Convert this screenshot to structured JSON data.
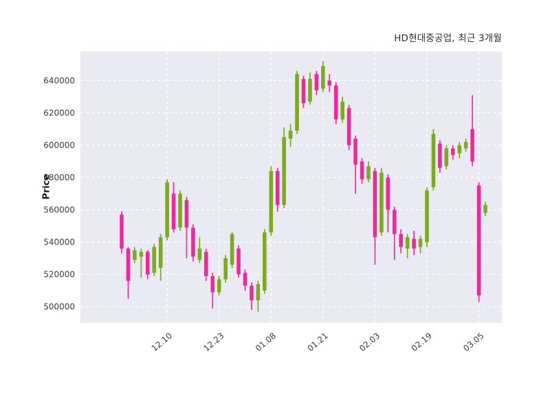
{
  "title": "HD현대중공업, 최근 3개월",
  "ylabel": "Price",
  "colors": {
    "figure_bg": "#ffffff",
    "plot_bg": "#eaeaf2",
    "grid": "#ffffff",
    "tick_text": "#3b3b3b",
    "title_text": "#2e2e2e"
  },
  "chart_data": {
    "type": "candlestick",
    "title": "HD현대중공업, 최근 3개월",
    "ylabel": "Price",
    "grid": true,
    "legend": false,
    "up_color": "#7dab1e",
    "down_color": "#ee2a9b",
    "ylim": [
      490000,
      658000
    ],
    "y_ticks": [
      500000,
      520000,
      540000,
      560000,
      580000,
      600000,
      620000,
      640000
    ],
    "y_tick_labels": [
      "500000",
      "520000",
      "540000",
      "560000",
      "580000",
      "600000",
      "620000",
      "640000"
    ],
    "x_tick_labels": [
      "12.10",
      "12.23",
      "01.08",
      "01.21",
      "02.03",
      "02.19",
      "03.05"
    ],
    "x_tick_indices": [
      7,
      15,
      23,
      31,
      39,
      47,
      55
    ],
    "ohlc_order": [
      "open",
      "high",
      "low",
      "close"
    ],
    "candles": [
      [
        557000,
        559000,
        533000,
        536000
      ],
      [
        536000,
        537000,
        505000,
        516000
      ],
      [
        529000,
        537000,
        527000,
        535000
      ],
      [
        531000,
        536000,
        518000,
        534000
      ],
      [
        534000,
        535000,
        517000,
        520000
      ],
      [
        521000,
        539000,
        519000,
        537000
      ],
      [
        524000,
        545000,
        516000,
        543000
      ],
      [
        543000,
        579000,
        541000,
        577000
      ],
      [
        570000,
        577000,
        546000,
        548000
      ],
      [
        549000,
        572000,
        547000,
        570000
      ],
      [
        566000,
        568000,
        530000,
        549000
      ],
      [
        549000,
        551000,
        528000,
        531000
      ],
      [
        529000,
        543000,
        527000,
        536000
      ],
      [
        534000,
        536000,
        516000,
        519000
      ],
      [
        519000,
        521000,
        499000,
        509000
      ],
      [
        509000,
        519000,
        507000,
        517000
      ],
      [
        517000,
        532000,
        515000,
        530000
      ],
      [
        526000,
        546000,
        524000,
        545000
      ],
      [
        536000,
        538000,
        518000,
        520000
      ],
      [
        521000,
        523000,
        510000,
        513000
      ],
      [
        513000,
        515000,
        498000,
        504000
      ],
      [
        504000,
        516000,
        497000,
        514000
      ],
      [
        510000,
        548000,
        508000,
        546000
      ],
      [
        546000,
        587000,
        544000,
        584000
      ],
      [
        584000,
        586000,
        559000,
        563000
      ],
      [
        563000,
        611000,
        561000,
        605000
      ],
      [
        604000,
        613000,
        599000,
        609000
      ],
      [
        609000,
        646000,
        607000,
        644000
      ],
      [
        641000,
        643000,
        623000,
        626000
      ],
      [
        627000,
        645000,
        625000,
        641000
      ],
      [
        644000,
        646000,
        631000,
        634000
      ],
      [
        635000,
        652000,
        633000,
        649000
      ],
      [
        640000,
        644000,
        633000,
        637000
      ],
      [
        637000,
        639000,
        613000,
        616000
      ],
      [
        616000,
        630000,
        614000,
        627000
      ],
      [
        623000,
        625000,
        597000,
        600000
      ],
      [
        604000,
        606000,
        570000,
        588000
      ],
      [
        590000,
        592000,
        576000,
        579000
      ],
      [
        579000,
        590000,
        577000,
        587000
      ],
      [
        584000,
        586000,
        526000,
        543000
      ],
      [
        546000,
        586000,
        544000,
        583000
      ],
      [
        580000,
        582000,
        546000,
        560000
      ],
      [
        560000,
        562000,
        529000,
        545000
      ],
      [
        545000,
        548000,
        533000,
        537000
      ],
      [
        536000,
        545000,
        530000,
        543000
      ],
      [
        542000,
        547000,
        532000,
        536000
      ],
      [
        537000,
        544000,
        533000,
        542000
      ],
      [
        540000,
        574000,
        537000,
        572000
      ],
      [
        574000,
        610000,
        572000,
        607000
      ],
      [
        601000,
        603000,
        583000,
        586000
      ],
      [
        587000,
        600000,
        585000,
        598000
      ],
      [
        598000,
        600000,
        591000,
        594000
      ],
      [
        595000,
        602000,
        592000,
        600000
      ],
      [
        598000,
        604000,
        596000,
        602000
      ],
      [
        610000,
        631000,
        587000,
        590000
      ],
      [
        575000,
        577000,
        503000,
        507000
      ],
      [
        558000,
        565000,
        556000,
        563000
      ]
    ]
  }
}
